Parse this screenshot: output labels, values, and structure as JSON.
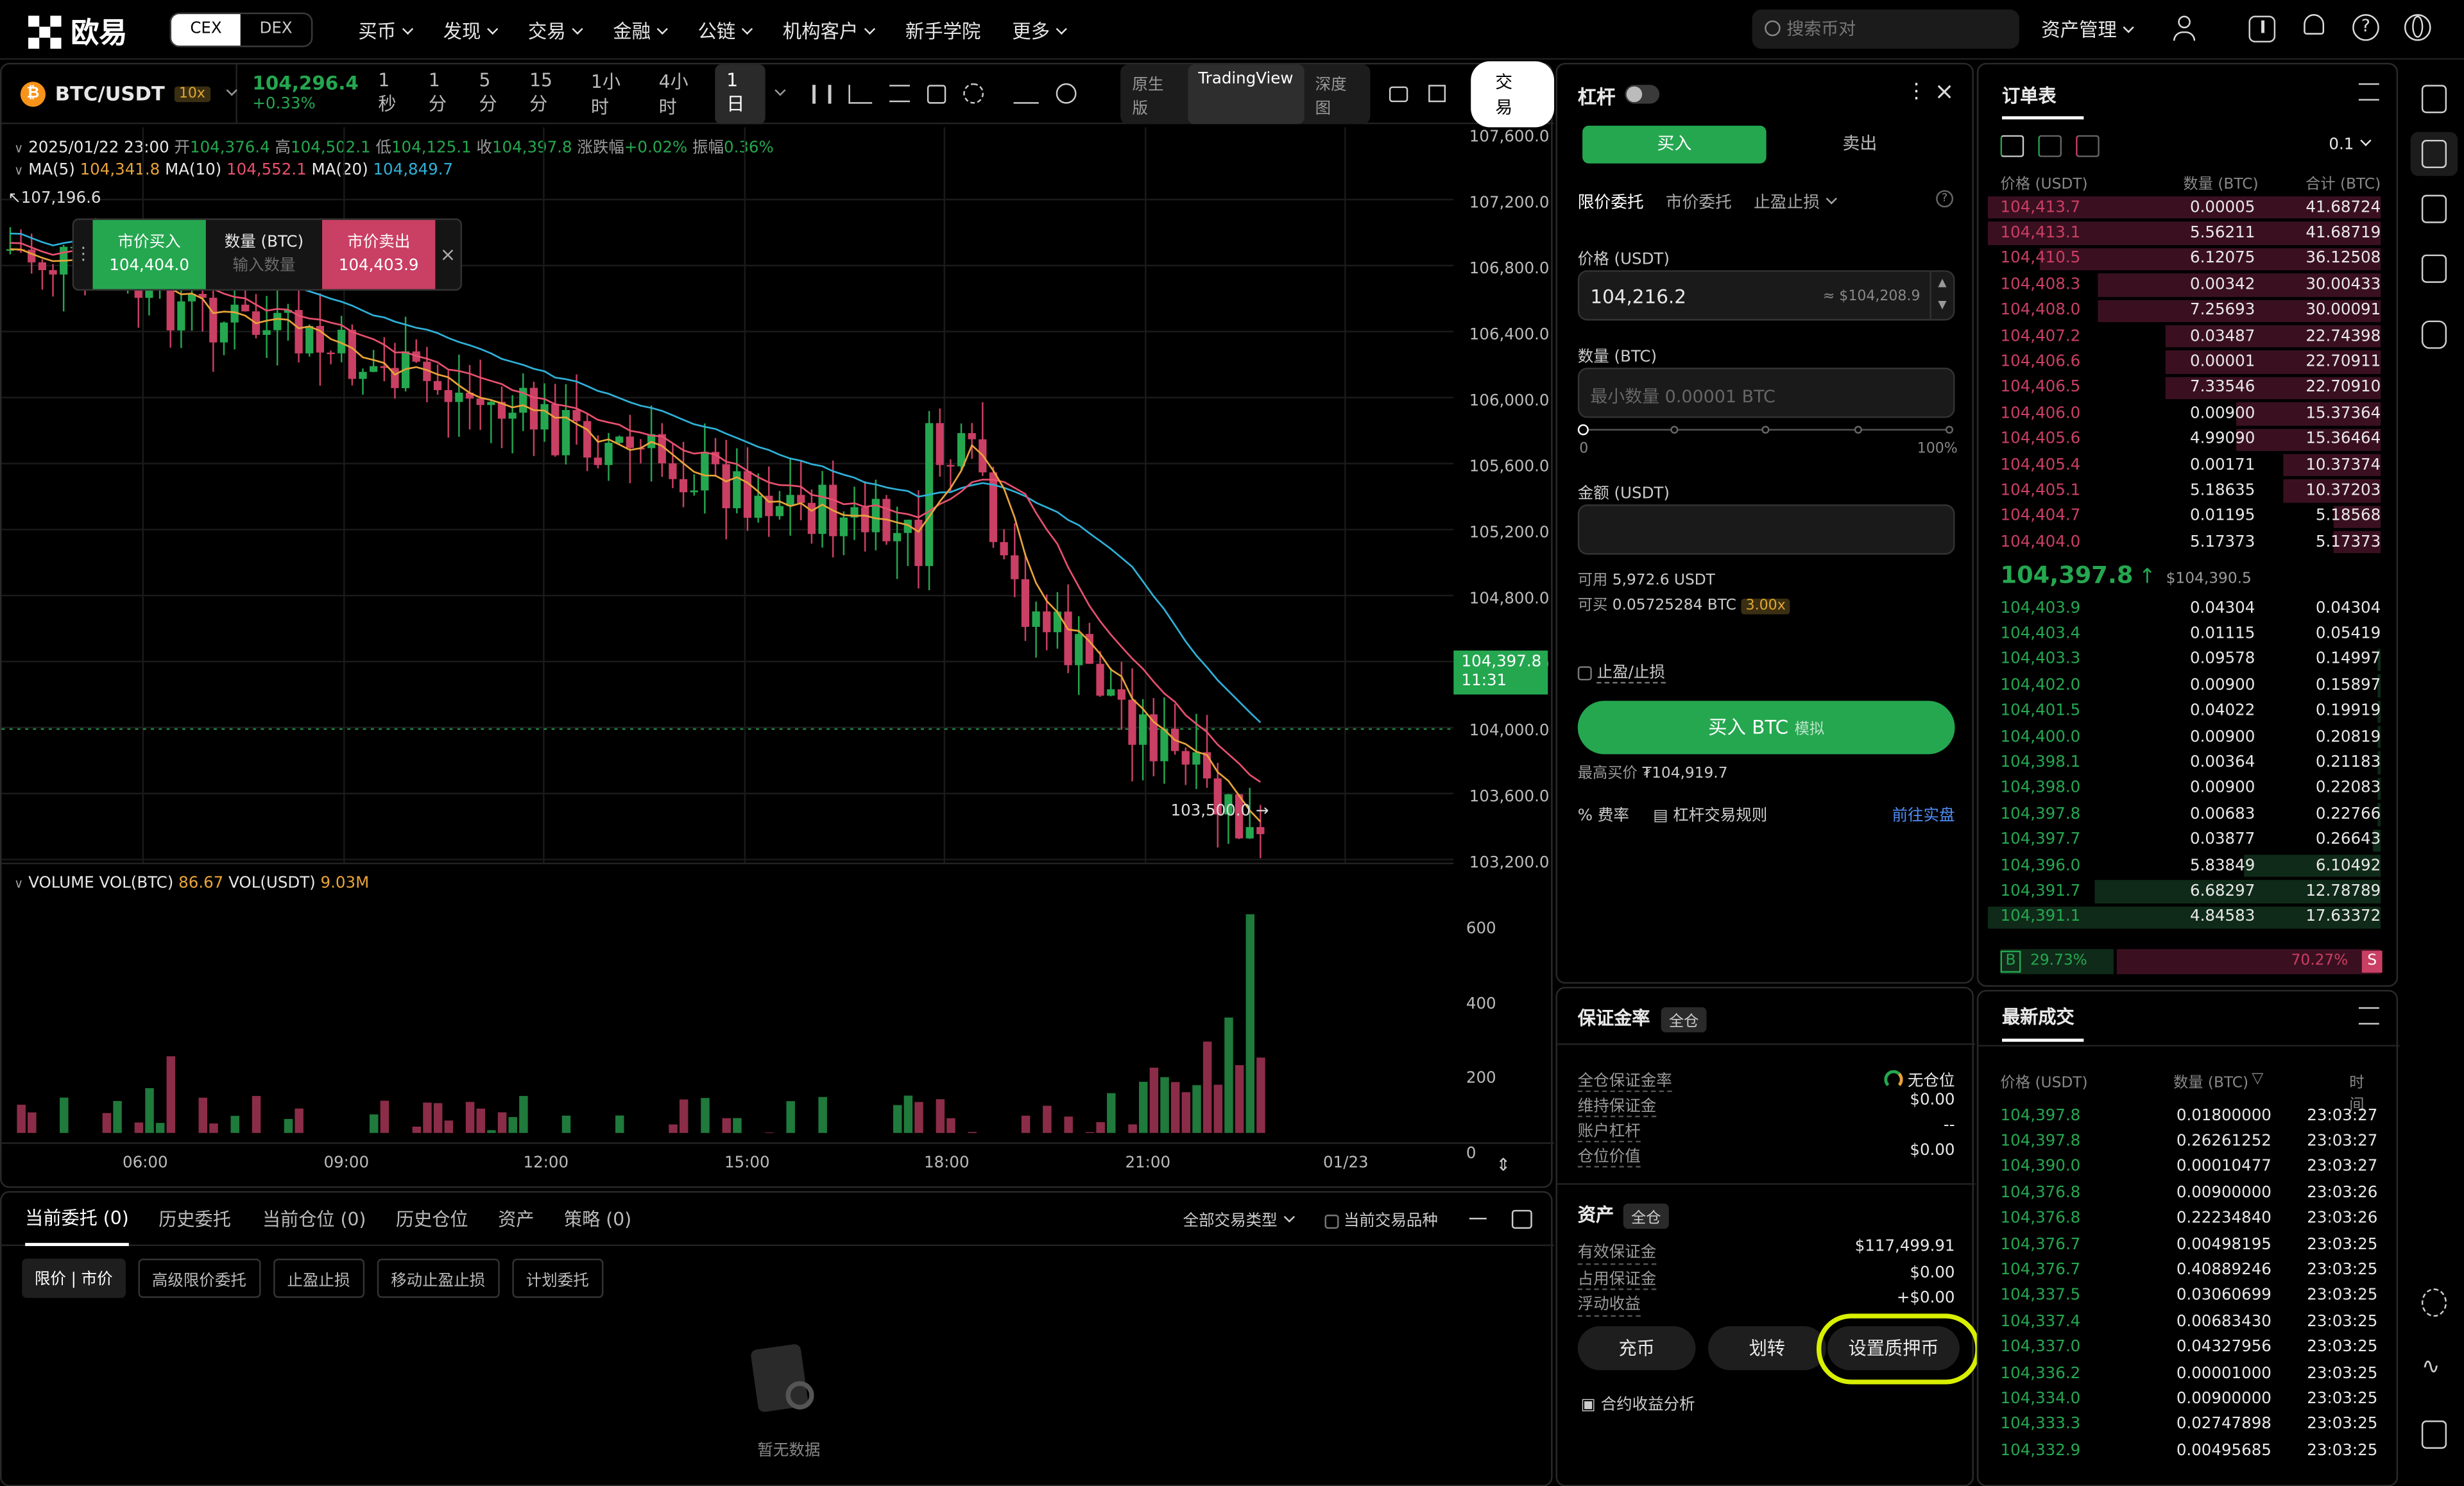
{
  "brand": {
    "name": "欧易",
    "toggle": [
      "CEX",
      "DEX"
    ]
  },
  "nav": [
    "买币",
    "发现",
    "交易",
    "金融",
    "公链",
    "机构客户",
    "新手学院",
    "更多"
  ],
  "search": {
    "placeholder": "搜索币对"
  },
  "topright": {
    "assets": "资产管理"
  },
  "ticker": {
    "pair": "BTC/USDT",
    "leverage": "10x",
    "price": "104,296.4",
    "change": "+0.33%"
  },
  "timeframes": [
    "1秒",
    "1分",
    "5分",
    "15分",
    "1小时",
    "4小时",
    "1日"
  ],
  "views": [
    "原生版",
    "TradingView",
    "深度图"
  ],
  "trade_label": "交易",
  "ohlc": {
    "date": "2025/01/22 23:00",
    "open_l": "开",
    "open": "104,376.4",
    "high_l": "高",
    "high": "104,502.1",
    "low_l": "低",
    "low": "104,125.1",
    "close_l": "收",
    "close": "104,397.8",
    "chg_l": "涨跌幅",
    "chg": "+0.02%",
    "amp_l": "振幅",
    "amp": "0.36%"
  },
  "ma": {
    "ma5_l": "MA(5)",
    "ma5": "104,341.8",
    "ma10_l": "MA(10)",
    "ma10": "104,552.1",
    "ma20_l": "MA(20)",
    "ma20": "104,849.7"
  },
  "quick": {
    "hi_label": "107,196.6",
    "buy_label": "市价买入",
    "buy_price": "104,404.0",
    "qty_label": "数量 (BTC)",
    "qty_ph": "输入数量",
    "sell_label": "市价卖出",
    "sell_price": "104,403.9"
  },
  "price_axis": [
    "107,600.0",
    "107,200.0",
    "106,800.0",
    "106,400.0",
    "106,000.0",
    "105,600.0",
    "105,200.0",
    "104,800.0",
    "104,400.0",
    "104,000.0",
    "103,600.0",
    "103,200.0"
  ],
  "last_price": {
    "price": "104,397.8",
    "time": "11:31"
  },
  "low_marker": "103,500.0 →",
  "volume": {
    "label": "VOLUME",
    "btc_l": "VOL(BTC)",
    "btc": "86.67",
    "usdt_l": "VOL(USDT)",
    "usdt": "9.03M",
    "axis": [
      "600",
      "400",
      "200",
      "0"
    ]
  },
  "time_axis": [
    "06:00",
    "09:00",
    "12:00",
    "15:00",
    "18:00",
    "21:00",
    "01/23"
  ],
  "bottom": {
    "tabs": [
      "当前委托 (0)",
      "历史委托",
      "当前仓位 (0)",
      "历史仓位",
      "资产",
      "策略 (0)"
    ],
    "filter": "全部交易类型",
    "current_only": "当前交易品种",
    "subtabs": [
      "限价 | 市价",
      "高级限价委托",
      "止盈止损",
      "移动止盈止损",
      "计划委托"
    ],
    "empty": "暂无数据"
  },
  "order": {
    "title": "杠杆",
    "buy": "买入",
    "sell": "卖出",
    "types": [
      "限价委托",
      "市价委托",
      "止盈止损"
    ],
    "price_label": "价格 (USDT)",
    "price_value": "104,216.2",
    "price_usd": "≈ $104,208.9",
    "qty_label": "数量 (BTC)",
    "qty_ph": "最小数量 0.00001 BTC",
    "slider_min": "0",
    "slider_max": "100%",
    "amount_label": "金额 (USDT)",
    "avail_l": "可用",
    "avail": "5,972.6 USDT",
    "canbuy_l": "可买",
    "canbuy": "0.05725284 BTC",
    "canbuy_tag": "3.00x",
    "tpsl": "止盈/止损",
    "submit": "买入 BTC",
    "submit_tag": "模拟",
    "maxbuy_l": "最高买价",
    "maxbuy": "₮104,919.7",
    "fee": "费率",
    "rules": "杠杆交易规则",
    "live": "前往实盘"
  },
  "margin": {
    "title": "保证金率",
    "mode": "全仓",
    "rows": [
      {
        "k": "全仓保证金率",
        "v": "无仓位"
      },
      {
        "k": "维持保证金",
        "v": "$0.00"
      },
      {
        "k": "账户杠杆",
        "v": "--"
      },
      {
        "k": "仓位价值",
        "v": "$0.00"
      }
    ],
    "assets_title": "资产",
    "assets_mode": "全仓",
    "assets_rows": [
      {
        "k": "有效保证金",
        "v": "$117,499.91"
      },
      {
        "k": "占用保证金",
        "v": "$0.00"
      },
      {
        "k": "浮动收益",
        "v": "+$0.00"
      }
    ],
    "buttons": [
      "充币",
      "划转",
      "设置质押币"
    ],
    "analysis": "合约收益分析"
  },
  "orderbook": {
    "title": "订单表",
    "precision": "0.1",
    "headers": [
      "价格 (USDT)",
      "数量 (BTC)",
      "合计 (BTC)"
    ],
    "asks": [
      {
        "p": "104,413.7",
        "q": "0.00005",
        "t": "41.68724",
        "d": 1.0
      },
      {
        "p": "104,413.1",
        "q": "5.56211",
        "t": "41.68719",
        "d": 1.0
      },
      {
        "p": "104,410.5",
        "q": "6.12075",
        "t": "36.12508",
        "d": 0.87
      },
      {
        "p": "104,408.3",
        "q": "0.00342",
        "t": "30.00433",
        "d": 0.72
      },
      {
        "p": "104,408.0",
        "q": "7.25693",
        "t": "30.00091",
        "d": 0.72
      },
      {
        "p": "104,407.2",
        "q": "0.03487",
        "t": "22.74398",
        "d": 0.55
      },
      {
        "p": "104,406.6",
        "q": "0.00001",
        "t": "22.70911",
        "d": 0.55
      },
      {
        "p": "104,406.5",
        "q": "7.33546",
        "t": "22.70910",
        "d": 0.55
      },
      {
        "p": "104,406.0",
        "q": "0.00900",
        "t": "15.37364",
        "d": 0.37
      },
      {
        "p": "104,405.6",
        "q": "4.99090",
        "t": "15.36464",
        "d": 0.37
      },
      {
        "p": "104,405.4",
        "q": "0.00171",
        "t": "10.37374",
        "d": 0.25
      },
      {
        "p": "104,405.1",
        "q": "5.18635",
        "t": "10.37203",
        "d": 0.25
      },
      {
        "p": "104,404.7",
        "q": "0.01195",
        "t": "5.18568",
        "d": 0.12
      },
      {
        "p": "104,404.0",
        "q": "5.17373",
        "t": "5.17373",
        "d": 0.12
      }
    ],
    "mid": {
      "price": "104,397.8",
      "arrow": "↑",
      "usd": "$104,390.5"
    },
    "bids": [
      {
        "p": "104,403.9",
        "q": "0.04304",
        "t": "0.04304",
        "d": 0.0
      },
      {
        "p": "104,403.4",
        "q": "0.01115",
        "t": "0.05419",
        "d": 0.0
      },
      {
        "p": "104,403.3",
        "q": "0.09578",
        "t": "0.14997",
        "d": 0.01
      },
      {
        "p": "104,402.0",
        "q": "0.00900",
        "t": "0.15897",
        "d": 0.01
      },
      {
        "p": "104,401.5",
        "q": "0.04022",
        "t": "0.19919",
        "d": 0.01
      },
      {
        "p": "104,400.0",
        "q": "0.00900",
        "t": "0.20819",
        "d": 0.01
      },
      {
        "p": "104,398.1",
        "q": "0.00364",
        "t": "0.21183",
        "d": 0.01
      },
      {
        "p": "104,398.0",
        "q": "0.00900",
        "t": "0.22083",
        "d": 0.01
      },
      {
        "p": "104,397.8",
        "q": "0.00683",
        "t": "0.22766",
        "d": 0.01
      },
      {
        "p": "104,397.7",
        "q": "0.03877",
        "t": "0.26643",
        "d": 0.02
      },
      {
        "p": "104,396.0",
        "q": "5.83849",
        "t": "6.10492",
        "d": 0.35
      },
      {
        "p": "104,391.7",
        "q": "6.68297",
        "t": "12.78789",
        "d": 0.73
      },
      {
        "p": "104,391.1",
        "q": "4.84583",
        "t": "17.63372",
        "d": 1.0
      }
    ],
    "ratio": {
      "b": "B",
      "b_pct": "29.73%",
      "s": "S",
      "s_pct": "70.27%"
    }
  },
  "trades": {
    "title": "最新成交",
    "headers": [
      "价格 (USDT)",
      "数量 (BTC)",
      "时间"
    ],
    "rows": [
      {
        "p": "104,397.8",
        "q": "0.01800000",
        "t": "23:03:27"
      },
      {
        "p": "104,397.8",
        "q": "0.26261252",
        "t": "23:03:27"
      },
      {
        "p": "104,390.0",
        "q": "0.00010477",
        "t": "23:03:27"
      },
      {
        "p": "104,376.8",
        "q": "0.00900000",
        "t": "23:03:26"
      },
      {
        "p": "104,376.8",
        "q": "0.22234840",
        "t": "23:03:26"
      },
      {
        "p": "104,376.7",
        "q": "0.00498195",
        "t": "23:03:25"
      },
      {
        "p": "104,376.7",
        "q": "0.40889246",
        "t": "23:03:25"
      },
      {
        "p": "104,337.5",
        "q": "0.03060699",
        "t": "23:03:25"
      },
      {
        "p": "104,337.4",
        "q": "0.00683430",
        "t": "23:03:25"
      },
      {
        "p": "104,337.0",
        "q": "0.04327956",
        "t": "23:03:25"
      },
      {
        "p": "104,336.2",
        "q": "0.00001000",
        "t": "23:03:25"
      },
      {
        "p": "104,334.0",
        "q": "0.00900000",
        "t": "23:03:25"
      },
      {
        "p": "104,333.3",
        "q": "0.02747898",
        "t": "23:03:25"
      },
      {
        "p": "104,332.9",
        "q": "0.00495685",
        "t": "23:03:25"
      }
    ]
  },
  "colors": {
    "up": "#25a750",
    "down": "#ca3f64",
    "highlight": "#d8f000"
  }
}
